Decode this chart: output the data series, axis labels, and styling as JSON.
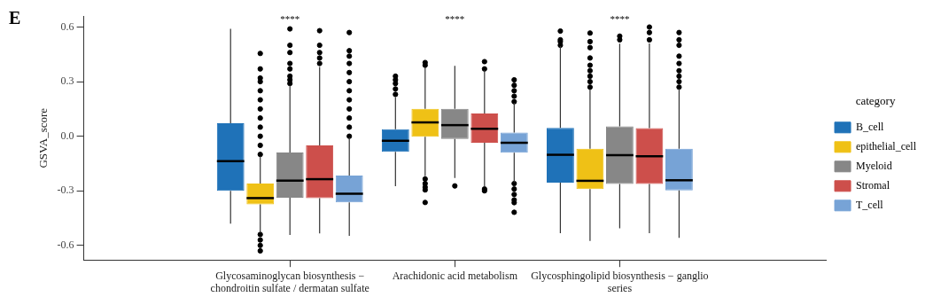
{
  "chart_data": {
    "type": "box",
    "title": "E",
    "ylabel": "GSVA_score",
    "legend_title": "category",
    "legend": "right",
    "grid": false,
    "categories": [
      "Glycosaminoglycan biosynthesis − chondroitin sulfate / dermatan sulfate",
      "Arachidonic acid metabolism",
      "Glycosphingolipid biosynthesis − ganglio series"
    ],
    "ylim": [
      -0.68,
      0.66
    ],
    "yticks": [
      -0.6,
      -0.3,
      {
        "value": 0,
        "label": "0.0"
      },
      0.3,
      0.6
    ],
    "annotations": [
      "****",
      "****",
      "****"
    ],
    "series": [
      {
        "name": "B_cell",
        "color": "#1f72b8",
        "boxes": [
          {
            "low": -0.48,
            "q1": -0.3,
            "median": -0.137,
            "q3": 0.071,
            "high": 0.59
          },
          {
            "low": -0.275,
            "q1": -0.086,
            "median": -0.025,
            "q3": 0.038,
            "high": 0.215,
            "outliers": [
              0.23,
              0.26,
              0.29,
              0.31,
              0.33
            ]
          },
          {
            "low": -0.533,
            "q1": -0.255,
            "median": -0.102,
            "q3": 0.046,
            "high": 0.495,
            "outliers": [
              0.5,
              0.52,
              0.53,
              0.578
            ]
          }
        ]
      },
      {
        "name": "epithelial_cell",
        "color": "#efc116",
        "boxes": [
          {
            "low": -0.53,
            "q1": -0.374,
            "median": -0.34,
            "q3": -0.26,
            "high": -0.11,
            "outliers": [
              -0.1,
              -0.05,
              0.0,
              0.05,
              0.1,
              0.15,
              0.2,
              0.25,
              0.3,
              0.32,
              0.37,
              0.455,
              -0.54,
              -0.57,
              -0.6,
              -0.63
            ]
          },
          {
            "low": -0.22,
            "q1": -0.003,
            "median": 0.076,
            "q3": 0.15,
            "high": 0.38,
            "outliers": [
              0.39,
              0.405,
              -0.235,
              -0.26,
              -0.28,
              -0.295,
              -0.364
            ]
          },
          {
            "low": -0.575,
            "q1": -0.291,
            "median": -0.245,
            "q3": -0.069,
            "high": 0.257,
            "outliers": [
              0.27,
              0.3,
              0.33,
              0.36,
              0.39,
              0.43,
              0.487,
              0.52,
              0.567
            ]
          }
        ]
      },
      {
        "name": "Myeloid",
        "color": "#878787",
        "boxes": [
          {
            "low": -0.542,
            "q1": -0.338,
            "median": -0.244,
            "q3": -0.09,
            "high": 0.28,
            "outliers": [
              0.29,
              0.31,
              0.33,
              0.37,
              0.4,
              0.46,
              0.5,
              0.59
            ]
          },
          {
            "low": -0.229,
            "q1": -0.015,
            "median": 0.061,
            "q3": 0.15,
            "high": 0.387,
            "outliers": [
              -0.273
            ]
          },
          {
            "low": -0.506,
            "q1": -0.262,
            "median": -0.104,
            "q3": 0.054,
            "high": 0.509,
            "outliers": [
              0.53,
              0.55
            ]
          }
        ]
      },
      {
        "name": "Stromal",
        "color": "#cd4f4b",
        "boxes": [
          {
            "low": -0.534,
            "q1": -0.34,
            "median": -0.236,
            "q3": -0.05,
            "high": 0.381,
            "outliers": [
              0.4,
              0.43,
              0.46,
              0.5,
              0.58
            ]
          },
          {
            "low": -0.278,
            "q1": -0.036,
            "median": 0.041,
            "q3": 0.125,
            "high": 0.363,
            "outliers": [
              0.37,
              0.41,
              -0.29,
              -0.3
            ]
          },
          {
            "low": -0.533,
            "q1": -0.262,
            "median": -0.11,
            "q3": 0.044,
            "high": 0.51,
            "outliers": [
              0.53,
              0.57,
              0.6
            ]
          }
        ]
      },
      {
        "name": "T_cell",
        "color": "#77a3d6",
        "boxes": [
          {
            "low": -0.547,
            "q1": -0.363,
            "median": -0.316,
            "q3": -0.216,
            "high": -0.007,
            "outliers": [
              0.0,
              0.05,
              0.1,
              0.15,
              0.2,
              0.25,
              0.3,
              0.35,
              0.4,
              0.44,
              0.47,
              0.57
            ]
          },
          {
            "low": -0.254,
            "q1": -0.091,
            "median": -0.036,
            "q3": 0.02,
            "high": 0.183,
            "outliers": [
              0.19,
              0.22,
              0.25,
              0.28,
              0.31,
              -0.26,
              -0.29,
              -0.32,
              -0.35,
              -0.365,
              -0.418
            ]
          },
          {
            "low": -0.558,
            "q1": -0.298,
            "median": -0.242,
            "q3": -0.069,
            "high": 0.262,
            "outliers": [
              0.27,
              0.3,
              0.33,
              0.36,
              0.4,
              0.44,
              0.5,
              0.53,
              0.57
            ]
          }
        ]
      }
    ]
  }
}
